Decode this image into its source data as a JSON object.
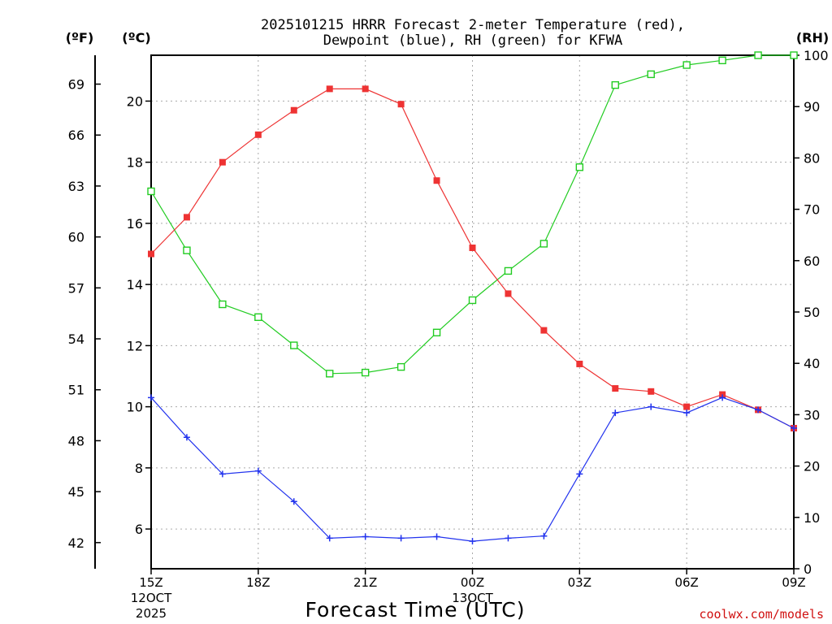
{
  "chart_data": {
    "type": "line",
    "title_line1": "2025101215 HRRR Forecast 2-meter Temperature (red),",
    "title_line2": "Dewpoint (blue), RH (green) for KFWA",
    "xlabel": "Forecast Time (UTC)",
    "credit": "coolwx.com/models",
    "units": {
      "fahrenheit": "(ºF)",
      "celsius": "(ºC)",
      "rh": "(RH)"
    },
    "x": [
      0,
      1,
      2,
      3,
      4,
      5,
      6,
      7,
      8,
      9,
      10,
      11,
      12,
      13,
      14,
      15,
      16,
      17,
      18
    ],
    "xlim": [
      0,
      18
    ],
    "x_ticks": [
      {
        "x": 0,
        "label": "15Z",
        "sub1": "12OCT",
        "sub2": "2025"
      },
      {
        "x": 3,
        "label": "18Z",
        "sub1": "",
        "sub2": ""
      },
      {
        "x": 6,
        "label": "21Z",
        "sub1": "",
        "sub2": ""
      },
      {
        "x": 9,
        "label": "00Z",
        "sub1": "13OCT",
        "sub2": ""
      },
      {
        "x": 12,
        "label": "03Z",
        "sub1": "",
        "sub2": ""
      },
      {
        "x": 15,
        "label": "06Z",
        "sub1": "",
        "sub2": ""
      },
      {
        "x": 18,
        "label": "09Z",
        "sub1": "",
        "sub2": ""
      }
    ],
    "celsius_axis": {
      "lim": [
        4.7,
        21.5
      ],
      "ticks": [
        6,
        8,
        10,
        12,
        14,
        16,
        18,
        20
      ]
    },
    "fahrenheit_axis": {
      "lim": [
        40.46,
        70.7
      ],
      "ticks": [
        42,
        45,
        48,
        51,
        54,
        57,
        60,
        63,
        66,
        69
      ]
    },
    "rh_axis": {
      "lim": [
        0,
        100
      ],
      "ticks": [
        0,
        10,
        20,
        30,
        40,
        50,
        60,
        70,
        80,
        90,
        100
      ]
    },
    "series": [
      {
        "name": "Temperature",
        "axis": "celsius",
        "color": "#ee3333",
        "marker": "filled-square",
        "values": [
          15.0,
          16.2,
          18.0,
          18.9,
          19.7,
          20.4,
          20.4,
          19.9,
          17.4,
          15.2,
          13.7,
          12.5,
          11.4,
          10.6,
          10.5,
          10.0,
          10.4,
          9.9,
          9.3
        ]
      },
      {
        "name": "Dewpoint",
        "axis": "celsius",
        "color": "#2233ee",
        "marker": "plus",
        "values": [
          10.3,
          9.0,
          7.8,
          7.9,
          6.9,
          5.7,
          5.75,
          5.7,
          5.75,
          5.6,
          5.7,
          5.77,
          7.8,
          9.8,
          10.0,
          9.8,
          10.3,
          9.9,
          9.3
        ]
      },
      {
        "name": "RH",
        "axis": "rh",
        "color": "#22cc22",
        "marker": "open-square",
        "values": [
          73.5,
          62,
          51.5,
          49,
          43.5,
          38,
          38.2,
          39.3,
          46,
          52.3,
          58,
          63.3,
          78.2,
          94.2,
          96.3,
          98.1,
          99,
          100,
          100
        ]
      }
    ]
  }
}
